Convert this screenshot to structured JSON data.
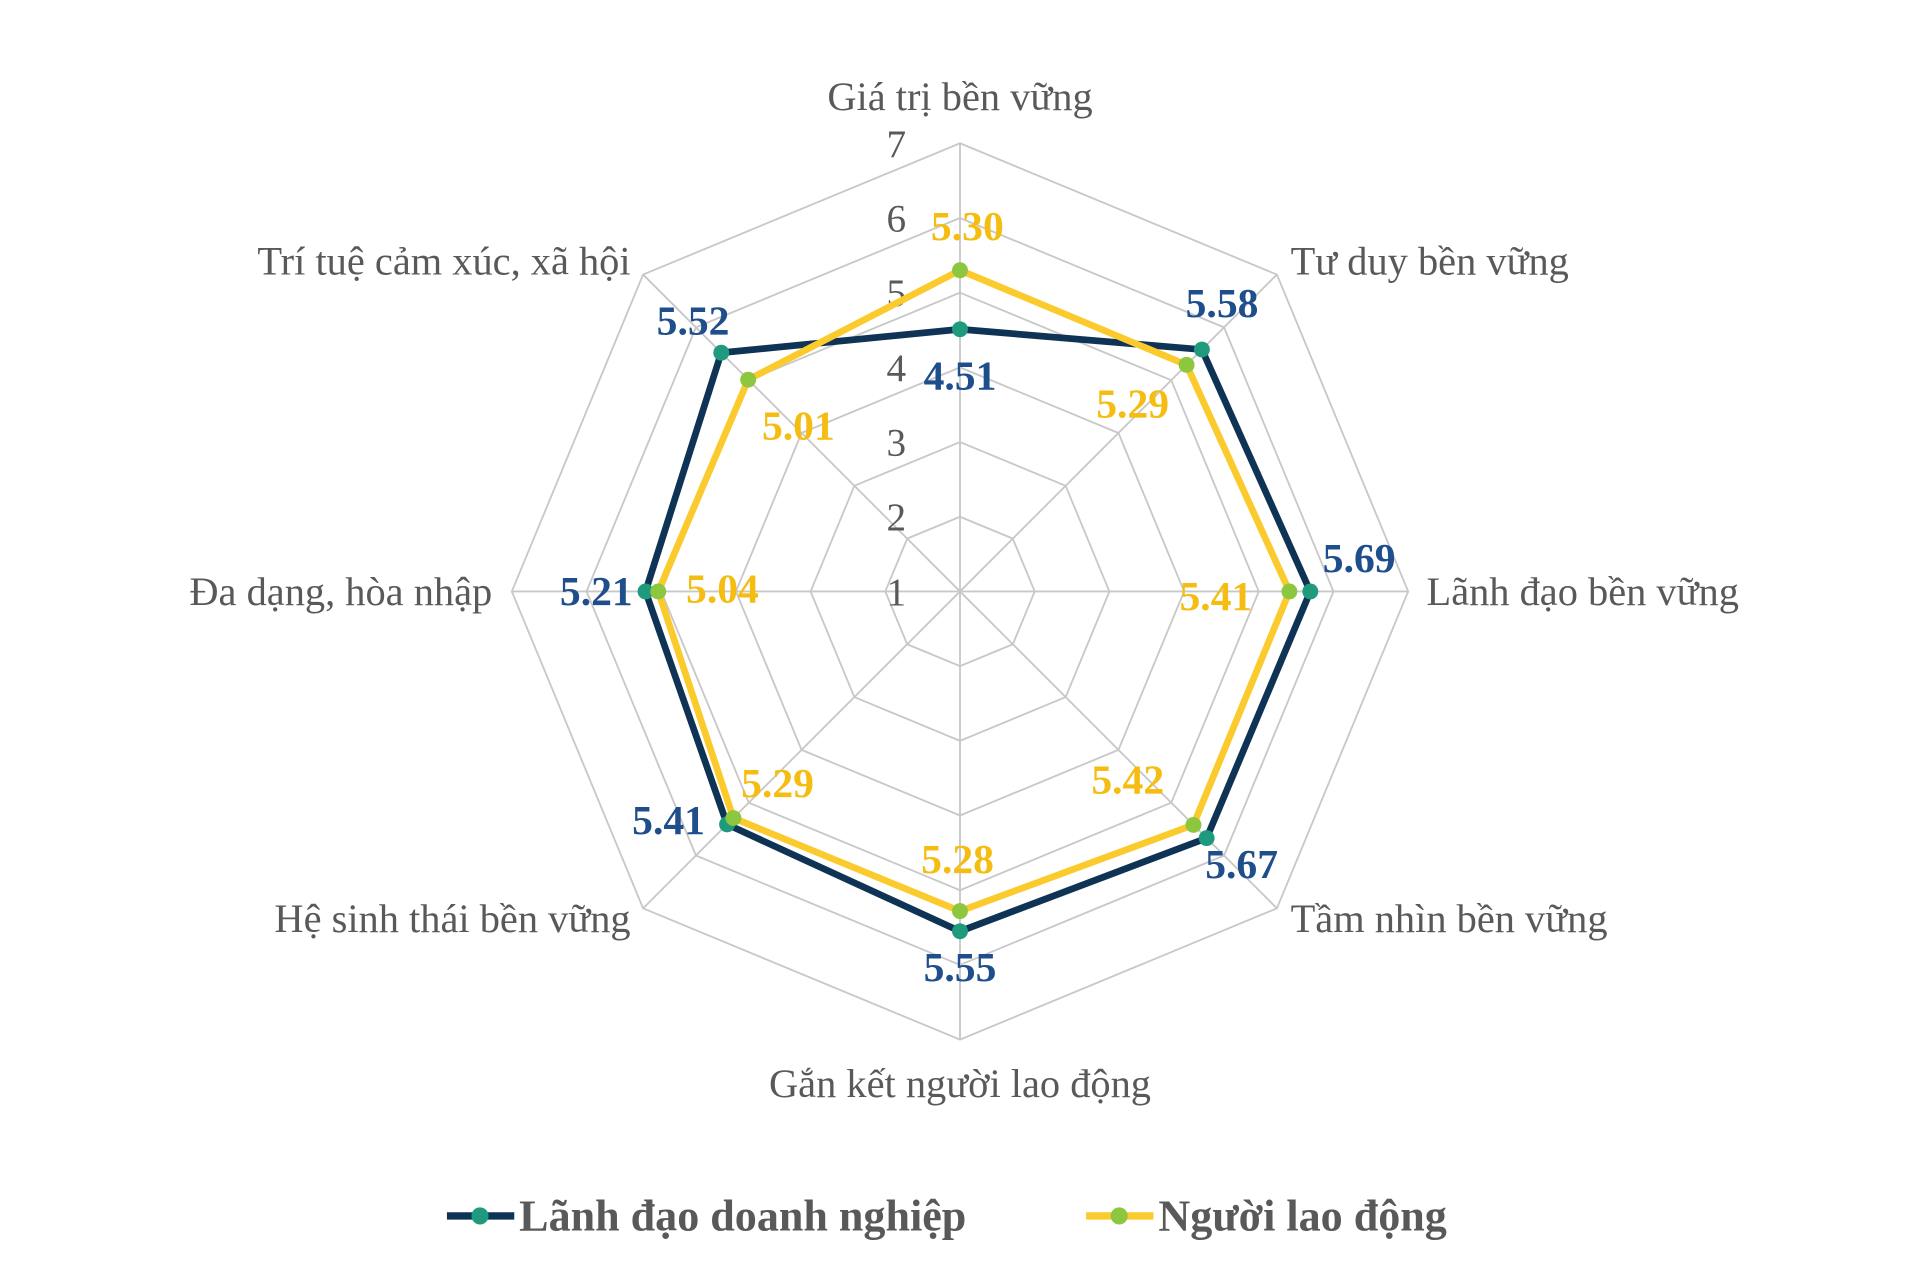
{
  "chart_data": {
    "type": "radar",
    "categories": [
      "Giá trị bền vững",
      "Tư duy bền vững",
      "Lãnh đạo bền vững",
      "Tầm nhìn bền vững",
      "Gắn kết người lao động",
      "Hệ sinh thái bền vững",
      "Đa dạng, hòa nhập",
      "Trí tuệ cảm xúc, xã hội"
    ],
    "rlim": [
      1,
      7
    ],
    "ticks": [
      "1",
      "2",
      "3",
      "4",
      "5",
      "6",
      "7"
    ],
    "grid": true,
    "legend_position": "bottom",
    "series": [
      {
        "name": "Lãnh đạo doanh nghiệp",
        "values": [
          4.51,
          5.58,
          5.69,
          5.67,
          5.55,
          5.41,
          5.21,
          5.52
        ],
        "labels": [
          "4.51",
          "5.58",
          "5.69",
          "5.67",
          "5.55",
          "5.41",
          "5.21",
          "5.52"
        ],
        "line_color": "#0f3354",
        "marker_color": "#1f9a7c",
        "label_color": "#1f4e8c"
      },
      {
        "name": "Người lao động",
        "values": [
          5.3,
          5.29,
          5.41,
          5.42,
          5.28,
          5.29,
          5.04,
          5.01
        ],
        "labels": [
          "5.30",
          "5.29",
          "5.41",
          "5.42",
          "5.28",
          "5.29",
          "5.04",
          "5.01"
        ],
        "line_color": "#fbca2d",
        "marker_color": "#8dc63f",
        "label_color": "#f5bd12"
      }
    ]
  }
}
